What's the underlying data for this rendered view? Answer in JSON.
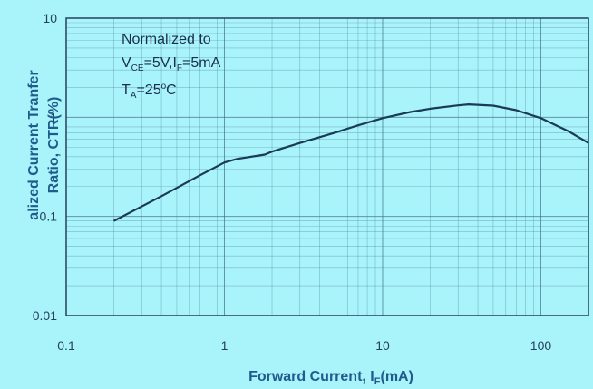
{
  "chart_data": {
    "type": "line",
    "xlabel": "Forward Current, I",
    "xlabel_sub": "F",
    "xlabel_tail": "(mA)",
    "ylabel_line1": "alized Current Tranfer",
    "ylabel_line2": "Ratio, CTR(%)",
    "x_scale": "log",
    "y_scale": "log",
    "xlim": [
      0.1,
      200
    ],
    "ylim": [
      0.01,
      10
    ],
    "x_ticks": [
      "0.1",
      "1",
      "10",
      "100"
    ],
    "y_ticks": [
      "0.01",
      "0.1",
      "1",
      "10"
    ],
    "grid": true,
    "annotation": {
      "line1": "Normalized to",
      "line2_parts": [
        "V",
        "CE",
        "=5V,I",
        "F",
        "=5mA"
      ],
      "line3_parts": [
        "T",
        "A",
        "=25",
        "o",
        "C"
      ]
    },
    "series": [
      {
        "x": [
          0.2,
          0.4,
          0.7,
          1.0,
          1.2,
          1.8,
          2.0,
          3.0,
          5.0,
          7.0,
          10.0,
          15.0,
          20.0,
          30.0,
          35.0,
          50.0,
          70.0,
          100.0,
          150.0,
          200.0
        ],
        "y": [
          0.09,
          0.16,
          0.26,
          0.35,
          0.38,
          0.42,
          0.45,
          0.55,
          0.7,
          0.83,
          0.98,
          1.13,
          1.22,
          1.32,
          1.35,
          1.31,
          1.18,
          0.98,
          0.72,
          0.55
        ]
      }
    ],
    "colors": {
      "background": "#a9f3fb",
      "line": "#1a3a56",
      "grid": "#3f6f86",
      "frame": "#24435a"
    }
  }
}
